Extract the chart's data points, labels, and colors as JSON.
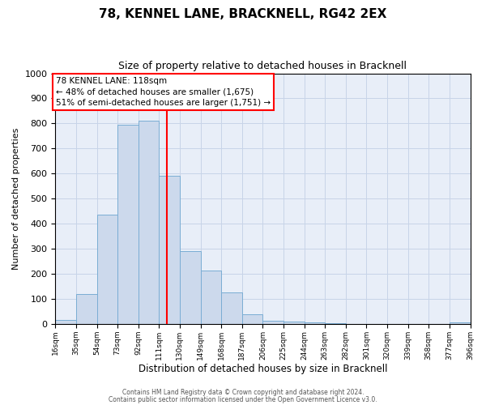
{
  "title": "78, KENNEL LANE, BRACKNELL, RG42 2EX",
  "subtitle": "Size of property relative to detached houses in Bracknell",
  "xlabel": "Distribution of detached houses by size in Bracknell",
  "ylabel": "Number of detached properties",
  "bar_values": [
    15,
    120,
    435,
    795,
    810,
    590,
    290,
    213,
    125,
    40,
    13,
    10,
    5,
    3,
    0,
    0,
    0,
    0,
    0,
    7
  ],
  "bin_edges": [
    16,
    35,
    54,
    73,
    92,
    111,
    130,
    149,
    168,
    187,
    206,
    225,
    244,
    263,
    282,
    301,
    320,
    339,
    358,
    377,
    396
  ],
  "tick_labels": [
    "16sqm",
    "35sqm",
    "54sqm",
    "73sqm",
    "92sqm",
    "111sqm",
    "130sqm",
    "149sqm",
    "168sqm",
    "187sqm",
    "206sqm",
    "225sqm",
    "244sqm",
    "263sqm",
    "282sqm",
    "301sqm",
    "320sqm",
    "339sqm",
    "358sqm",
    "377sqm",
    "396sqm"
  ],
  "bar_color": "#ccd9ec",
  "bar_edge_color": "#7aadd4",
  "vline_x": 118,
  "vline_color": "red",
  "ylim": [
    0,
    1000
  ],
  "yticks": [
    0,
    100,
    200,
    300,
    400,
    500,
    600,
    700,
    800,
    900,
    1000
  ],
  "grid_color": "#c8d4e8",
  "bg_color": "#e8eef8",
  "annotation_text": "78 KENNEL LANE: 118sqm\n← 48% of detached houses are smaller (1,675)\n51% of semi-detached houses are larger (1,751) →",
  "annotation_box_color": "white",
  "annotation_box_edge_color": "red",
  "footer1": "Contains HM Land Registry data © Crown copyright and database right 2024.",
  "footer2": "Contains public sector information licensed under the Open Government Licence v3.0.",
  "title_fontsize": 11,
  "subtitle_fontsize": 9
}
